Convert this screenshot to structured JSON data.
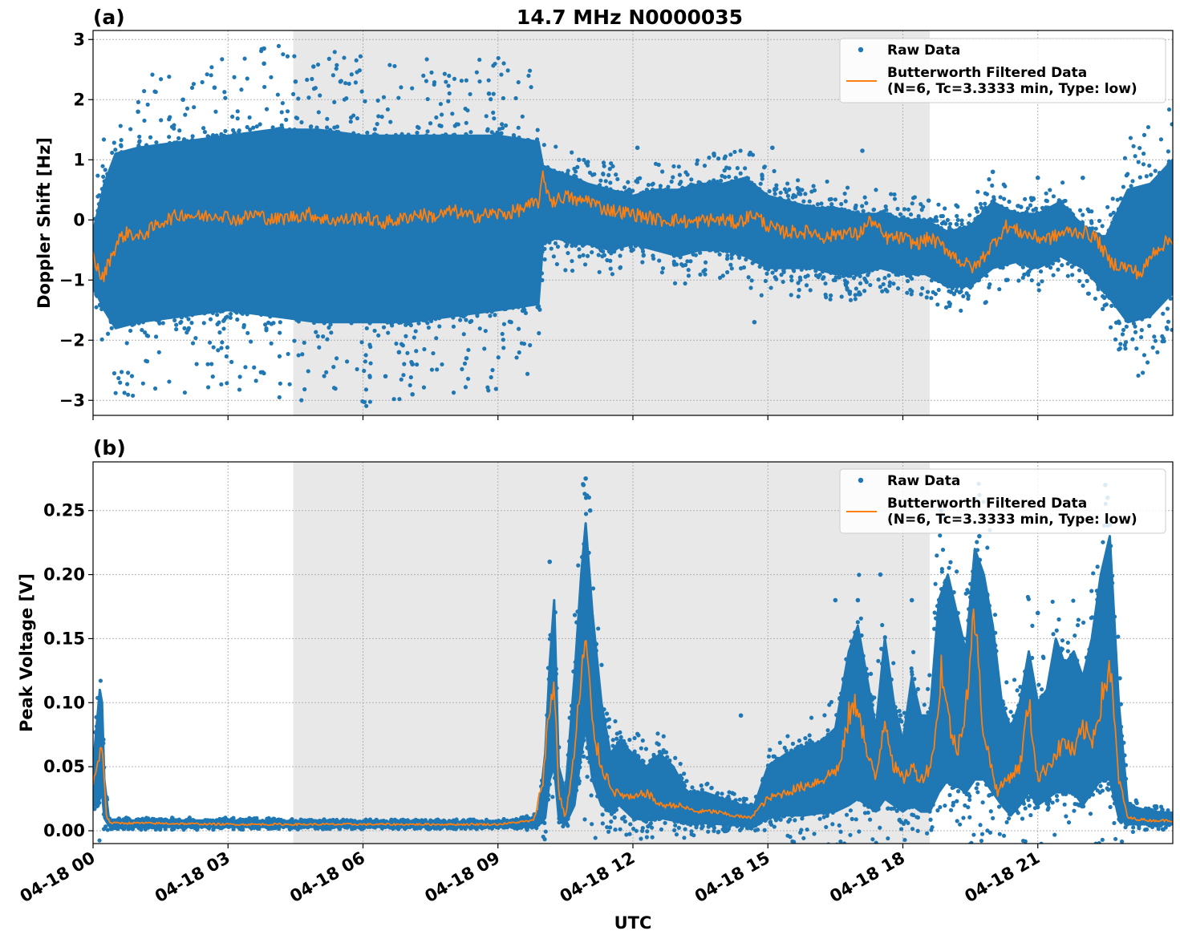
{
  "figure": {
    "title": "14.7 MHz N0000035",
    "xlabel": "UTC"
  },
  "colors": {
    "raw": "#1f77b4",
    "filtered": "#ff7f0e",
    "night_shade": "#e8e8e8",
    "grid": "#b0b0b0"
  },
  "chart_data": [
    {
      "type": "scatter",
      "panel_label": "(a)",
      "title": "14.7 MHz N0000035",
      "ylabel": "Doppler Shift [Hz]",
      "xlabel": "",
      "x_unit": "hours UTC on 04-18",
      "xlim": [
        0,
        24
      ],
      "ylim": [
        -3.25,
        3.15
      ],
      "yticks": [
        3,
        2,
        1,
        0,
        -1,
        -2,
        -3
      ],
      "ytick_labels": [
        "3",
        "2",
        "1",
        "0",
        "−1",
        "−2",
        "−3"
      ],
      "shaded_span": [
        4.45,
        18.6
      ],
      "grid": true,
      "legend_position": "top-right",
      "legend": [
        "Raw Data",
        "Butterworth Filtered Data",
        "(N=6, Tc=3.3333 min, Type: low)"
      ],
      "series": [
        {
          "name": "Raw Data",
          "kind": "scatter-band",
          "x": [
            0.0,
            0.25,
            0.5,
            1.0,
            2.0,
            3.0,
            4.0,
            5.0,
            6.0,
            7.0,
            8.0,
            9.0,
            9.9,
            10.0,
            10.3,
            10.7,
            11.0,
            11.5,
            12.0,
            12.5,
            13.0,
            13.5,
            14.0,
            14.5,
            15.0,
            15.5,
            16.0,
            16.5,
            17.0,
            17.5,
            18.0,
            18.5,
            19.0,
            19.5,
            20.0,
            20.5,
            21.0,
            21.5,
            22.0,
            22.5,
            23.0,
            23.5,
            24.0
          ],
          "upper": [
            -0.2,
            0.6,
            1.1,
            1.2,
            1.3,
            1.4,
            1.5,
            1.5,
            1.4,
            1.4,
            1.4,
            1.4,
            1.3,
            0.9,
            0.8,
            0.7,
            0.6,
            0.5,
            0.4,
            0.5,
            0.5,
            0.6,
            0.6,
            0.7,
            0.4,
            0.3,
            0.2,
            0.2,
            0.1,
            0.1,
            0.0,
            0.0,
            -0.2,
            -0.1,
            0.3,
            0.1,
            0.1,
            0.3,
            -0.1,
            -0.3,
            0.5,
            0.6,
            1.0
          ],
          "lower": [
            -1.1,
            -1.5,
            -1.8,
            -1.7,
            -1.6,
            -1.5,
            -1.6,
            -1.7,
            -1.7,
            -1.7,
            -1.6,
            -1.5,
            -1.4,
            -0.4,
            -0.3,
            -0.4,
            -0.4,
            -0.5,
            -0.4,
            -0.5,
            -0.6,
            -0.5,
            -0.5,
            -0.6,
            -0.8,
            -0.8,
            -0.8,
            -0.9,
            -0.9,
            -0.8,
            -0.9,
            -0.9,
            -1.1,
            -1.1,
            -0.8,
            -0.7,
            -0.8,
            -0.6,
            -0.8,
            -1.2,
            -1.7,
            -1.6,
            -1.2
          ],
          "outliers_x": [
            3.8,
            3.8,
            4.9,
            1.0,
            2.0,
            2.7,
            5.5,
            6.5,
            7.1,
            7.1,
            6.8,
            8.3,
            10.8,
            12.1,
            13.8,
            15.1,
            17.1,
            20.0,
            20.3,
            21.0,
            22.0,
            14.7,
            8.8,
            4.5
          ],
          "outliers_y": [
            2.85,
            2.6,
            2.55,
            1.8,
            2.0,
            2.2,
            2.3,
            -2.6,
            -2.9,
            -2.4,
            -2.2,
            -2.3,
            1.0,
            1.2,
            1.1,
            1.2,
            1.15,
            0.8,
            -1.0,
            0.7,
            0.7,
            -1.7,
            2.1,
            2.3
          ]
        },
        {
          "name": "Butterworth Filtered Data",
          "kind": "line",
          "x": [
            0.0,
            0.2,
            0.4,
            0.6,
            0.8,
            1.0,
            1.3,
            1.6,
            2.0,
            2.4,
            2.8,
            3.2,
            3.6,
            4.0,
            4.4,
            4.8,
            5.2,
            5.6,
            6.0,
            6.4,
            6.8,
            7.2,
            7.6,
            8.0,
            8.4,
            8.8,
            9.2,
            9.6,
            9.9,
            10.0,
            10.2,
            10.5,
            10.8,
            11.0,
            11.3,
            11.6,
            12.0,
            12.3,
            12.6,
            13.0,
            13.3,
            13.6,
            14.0,
            14.3,
            14.7,
            15.0,
            15.3,
            15.6,
            16.0,
            16.3,
            16.6,
            17.0,
            17.3,
            17.6,
            18.0,
            18.3,
            18.6,
            19.0,
            19.3,
            19.6,
            20.0,
            20.3,
            20.6,
            21.0,
            21.3,
            21.6,
            22.0,
            22.3,
            22.6,
            23.0,
            23.3,
            23.6,
            24.0
          ],
          "y": [
            -0.6,
            -1.0,
            -0.6,
            -0.3,
            -0.2,
            -0.3,
            -0.15,
            0.0,
            0.1,
            0.05,
            0.1,
            0.0,
            0.1,
            0.0,
            0.05,
            0.1,
            0.0,
            0.0,
            0.05,
            -0.05,
            0.0,
            0.1,
            0.05,
            0.15,
            0.05,
            0.1,
            0.1,
            0.2,
            0.3,
            0.7,
            0.3,
            0.4,
            0.3,
            0.35,
            0.2,
            0.15,
            0.1,
            0.05,
            0.0,
            0.0,
            -0.05,
            0.0,
            0.0,
            -0.05,
            0.1,
            -0.1,
            -0.2,
            -0.2,
            -0.2,
            -0.3,
            -0.2,
            -0.25,
            0.0,
            -0.3,
            -0.3,
            -0.4,
            -0.3,
            -0.5,
            -0.7,
            -0.8,
            -0.4,
            -0.1,
            -0.2,
            -0.3,
            -0.3,
            -0.2,
            -0.2,
            -0.3,
            -0.7,
            -0.8,
            -0.9,
            -0.5,
            -0.3
          ]
        }
      ]
    },
    {
      "type": "scatter",
      "panel_label": "(b)",
      "title": "",
      "ylabel": "Peak Voltage [V]",
      "xlabel": "UTC",
      "x_unit": "hours UTC on 04-18",
      "xlim": [
        0,
        24
      ],
      "ylim": [
        -0.01,
        0.288
      ],
      "yticks": [
        0.0,
        0.05,
        0.1,
        0.15,
        0.2,
        0.25
      ],
      "ytick_labels": [
        "0.00",
        "0.05",
        "0.10",
        "0.15",
        "0.20",
        "0.25"
      ],
      "xticks": [
        0,
        3,
        6,
        9,
        12,
        15,
        18,
        21
      ],
      "xtick_labels": [
        "04-18 00",
        "04-18 03",
        "04-18 06",
        "04-18 09",
        "04-18 12",
        "04-18 15",
        "04-18 18",
        "04-18 21"
      ],
      "shaded_span": [
        4.45,
        18.6
      ],
      "grid": true,
      "legend_position": "top-right",
      "legend": [
        "Raw Data",
        "Butterworth Filtered Data",
        "(N=6, Tc=3.3333 min, Type: low)"
      ],
      "series": [
        {
          "name": "Raw Data",
          "kind": "scatter-band",
          "x": [
            0.0,
            0.1,
            0.15,
            0.2,
            0.25,
            0.35,
            0.4,
            1.0,
            3.0,
            6.0,
            9.0,
            9.7,
            9.9,
            10.05,
            10.15,
            10.25,
            10.35,
            10.5,
            10.7,
            10.85,
            10.95,
            11.1,
            11.3,
            11.5,
            11.7,
            12.0,
            12.3,
            12.6,
            12.9,
            13.2,
            13.6,
            14.0,
            14.4,
            14.7,
            15.0,
            15.4,
            15.8,
            16.2,
            16.5,
            16.8,
            17.0,
            17.2,
            17.4,
            17.6,
            17.8,
            18.0,
            18.2,
            18.4,
            18.6,
            18.8,
            19.0,
            19.2,
            19.4,
            19.6,
            19.8,
            20.0,
            20.2,
            20.4,
            20.6,
            20.8,
            21.0,
            21.2,
            21.4,
            21.6,
            21.8,
            22.0,
            22.2,
            22.4,
            22.6,
            22.8,
            23.0,
            23.5,
            24.0
          ],
          "upper": [
            0.05,
            0.09,
            0.11,
            0.1,
            0.04,
            0.01,
            0.008,
            0.008,
            0.008,
            0.007,
            0.007,
            0.009,
            0.012,
            0.06,
            0.13,
            0.18,
            0.05,
            0.03,
            0.12,
            0.2,
            0.24,
            0.17,
            0.1,
            0.06,
            0.07,
            0.06,
            0.05,
            0.06,
            0.05,
            0.03,
            0.03,
            0.025,
            0.02,
            0.02,
            0.05,
            0.06,
            0.065,
            0.07,
            0.08,
            0.14,
            0.16,
            0.12,
            0.08,
            0.15,
            0.1,
            0.07,
            0.12,
            0.09,
            0.09,
            0.18,
            0.2,
            0.17,
            0.14,
            0.22,
            0.2,
            0.16,
            0.1,
            0.08,
            0.1,
            0.14,
            0.1,
            0.11,
            0.15,
            0.13,
            0.14,
            0.12,
            0.15,
            0.2,
            0.23,
            0.1,
            0.02,
            0.015,
            0.014
          ],
          "lower": [
            0.02,
            0.02,
            0.025,
            0.03,
            0.01,
            0.004,
            0.003,
            0.003,
            0.003,
            0.003,
            0.003,
            0.003,
            0.004,
            0.01,
            0.04,
            0.05,
            0.01,
            0.005,
            0.02,
            0.06,
            0.08,
            0.04,
            0.02,
            0.015,
            0.02,
            0.01,
            0.008,
            0.01,
            0.008,
            0.006,
            0.006,
            0.005,
            0.004,
            0.004,
            0.01,
            0.012,
            0.012,
            0.014,
            0.015,
            0.02,
            0.025,
            0.02,
            0.015,
            0.025,
            0.02,
            0.015,
            0.02,
            0.015,
            0.015,
            0.03,
            0.04,
            0.035,
            0.03,
            0.04,
            0.04,
            0.03,
            0.02,
            0.012,
            0.02,
            0.03,
            0.02,
            0.025,
            0.03,
            0.03,
            0.03,
            0.02,
            0.03,
            0.04,
            0.04,
            0.01,
            0.005,
            0.005,
            0.005
          ],
          "outliers_x": [
            10.95,
            10.9,
            11.05,
            10.15,
            16.5,
            17.0,
            17.5,
            18.2,
            18.85,
            19.7,
            21.0,
            22.5,
            22.55,
            14.4
          ],
          "outliers_y": [
            0.275,
            0.27,
            0.25,
            0.21,
            0.18,
            0.18,
            0.2,
            0.18,
            0.25,
            0.23,
            0.17,
            0.27,
            0.26,
            0.09
          ]
        },
        {
          "name": "Butterworth Filtered Data",
          "kind": "line",
          "x": [
            0.0,
            0.1,
            0.2,
            0.25,
            0.3,
            0.4,
            1.0,
            3.0,
            6.0,
            9.0,
            9.8,
            10.0,
            10.1,
            10.25,
            10.35,
            10.5,
            10.7,
            10.85,
            10.95,
            11.1,
            11.3,
            11.6,
            12.0,
            12.3,
            12.6,
            13.0,
            13.4,
            13.8,
            14.2,
            14.6,
            15.0,
            15.4,
            15.8,
            16.2,
            16.6,
            16.8,
            17.0,
            17.2,
            17.4,
            17.6,
            17.8,
            18.0,
            18.2,
            18.4,
            18.6,
            18.75,
            18.85,
            19.0,
            19.2,
            19.4,
            19.6,
            19.75,
            19.9,
            20.1,
            20.3,
            20.6,
            20.8,
            21.0,
            21.2,
            21.4,
            21.6,
            21.8,
            22.0,
            22.2,
            22.4,
            22.6,
            22.8,
            23.0,
            23.5,
            24.0
          ],
          "y": [
            0.04,
            0.05,
            0.07,
            0.04,
            0.01,
            0.006,
            0.006,
            0.005,
            0.005,
            0.005,
            0.008,
            0.04,
            0.08,
            0.12,
            0.03,
            0.01,
            0.06,
            0.12,
            0.15,
            0.08,
            0.05,
            0.03,
            0.025,
            0.03,
            0.02,
            0.02,
            0.015,
            0.015,
            0.012,
            0.01,
            0.025,
            0.03,
            0.035,
            0.04,
            0.05,
            0.09,
            0.1,
            0.06,
            0.04,
            0.09,
            0.05,
            0.04,
            0.05,
            0.04,
            0.05,
            0.08,
            0.13,
            0.09,
            0.06,
            0.1,
            0.17,
            0.09,
            0.06,
            0.03,
            0.04,
            0.05,
            0.1,
            0.04,
            0.05,
            0.06,
            0.07,
            0.06,
            0.08,
            0.07,
            0.1,
            0.13,
            0.04,
            0.01,
            0.008,
            0.008
          ]
        }
      ]
    }
  ]
}
